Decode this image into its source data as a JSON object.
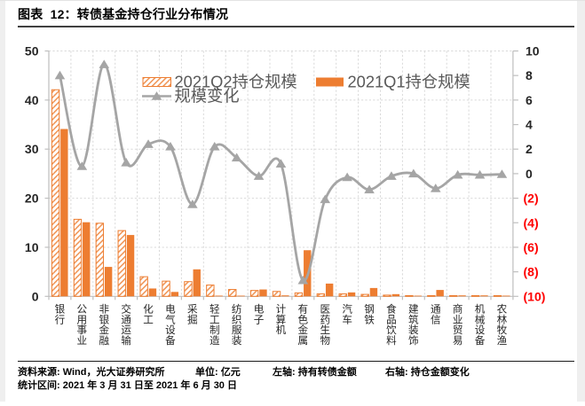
{
  "header": {
    "title": "图表  12：转债基金持仓行业分布情况"
  },
  "chart_data": {
    "type": "bar",
    "subtype": "grouped-bars-with-line-combo",
    "title": "转债基金持仓行业分布情况",
    "categories": [
      "银行",
      "公用事业",
      "非银金融",
      "交通运输",
      "化工",
      "电气设备",
      "采掘",
      "轻工制造",
      "纺织服装",
      "电子",
      "计算机",
      "有色金属",
      "医药生物",
      "汽车",
      "钢铁",
      "食品饮料",
      "建筑装饰",
      "通信",
      "商业贸易",
      "机械设备",
      "农林牧渔"
    ],
    "series": [
      {
        "name": "2021Q2持仓规模",
        "kind": "bar",
        "style": "hatched",
        "axis": "left",
        "values": [
          42.1,
          15.7,
          14.9,
          13.4,
          4.0,
          3.1,
          3.0,
          2.3,
          1.4,
          1.2,
          1.0,
          0.7,
          0.5,
          0.5,
          0.4,
          0.25,
          0.12,
          0.1,
          0.12,
          0.1,
          0.05
        ]
      },
      {
        "name": "2021Q1持仓规模",
        "kind": "bar",
        "style": "solid",
        "axis": "left",
        "values": [
          34.1,
          15.1,
          6.0,
          12.5,
          1.6,
          0.9,
          5.5,
          0.15,
          0.1,
          1.4,
          0.2,
          9.4,
          2.6,
          0.8,
          1.7,
          0.45,
          0.12,
          1.3,
          0.2,
          0.2,
          0.15
        ]
      },
      {
        "name": "规模变化",
        "kind": "line",
        "style": "smooth-triangle-markers",
        "axis": "right",
        "values": [
          8.0,
          0.6,
          8.9,
          0.9,
          2.4,
          2.2,
          -2.5,
          2.2,
          1.3,
          -0.2,
          0.8,
          -8.7,
          -2.1,
          -0.3,
          -1.3,
          -0.2,
          0.0,
          -1.2,
          -0.1,
          -0.1,
          -0.05
        ]
      }
    ],
    "left_axis": {
      "min": 0,
      "max": 50,
      "step": 10,
      "labels": [
        "0",
        "10",
        "20",
        "30",
        "40",
        "50"
      ]
    },
    "right_axis": {
      "min": -10,
      "max": 10,
      "step": 2,
      "labels": [
        "(10)",
        "(8)",
        "(6)",
        "(4)",
        "(2)",
        "0",
        "2",
        "4",
        "6",
        "8",
        "10"
      ],
      "negative_in_parentheses": true
    },
    "grid": "dashed",
    "legend_position": "top-inside",
    "xlabel": "",
    "ylabel_left": "亿元",
    "ylabel_right": "持仓金额变化",
    "colors": {
      "bar_orange": "#ED7D31",
      "line_gray": "#A5A5A5",
      "negative_tick_red": "#FF0000",
      "grid_gray": "#D9D9D9",
      "axis_gray": "#BFBFBF",
      "legend_text": "#595959",
      "axis_text": "#262626"
    }
  },
  "footer": {
    "source": "资料来源: Wind，光大证券研究所",
    "unit": "单位: 亿元",
    "left_axis_note": "左轴: 持有转债金额",
    "right_axis_note": "右轴: 持仓金额变化",
    "period": "统计区间: 2021 年 3 月 31 日至 2021 年 6 月 30 日"
  }
}
